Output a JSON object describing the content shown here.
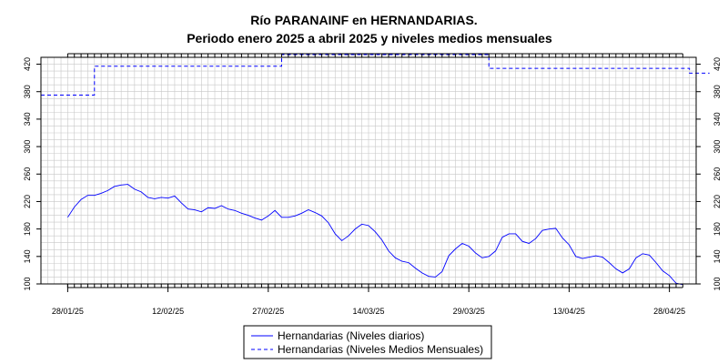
{
  "chart_data": {
    "type": "line",
    "title": "Río PARANAINF en HERNANDARIAS.",
    "subtitle": "Periodo enero 2025 a abril 2025 y niveles medios mensuales",
    "xlabel": "",
    "ylabel": "",
    "x_range": [
      "2025-01-28",
      "2025-04-30"
    ],
    "x_extended_range": [
      "2025-01-24",
      "2025-05-02"
    ],
    "ylim": [
      100,
      430
    ],
    "y_ticks": [
      100,
      140,
      180,
      220,
      260,
      300,
      340,
      380,
      420
    ],
    "x_ticks": [
      {
        "date": "2025-01-28",
        "label": "28/01/25"
      },
      {
        "date": "2025-02-12",
        "label": "12/02/25"
      },
      {
        "date": "2025-02-27",
        "label": "27/02/25"
      },
      {
        "date": "2025-03-14",
        "label": "14/03/25"
      },
      {
        "date": "2025-03-29",
        "label": "29/03/25"
      },
      {
        "date": "2025-04-13",
        "label": "13/04/25"
      },
      {
        "date": "2025-04-28",
        "label": "28/04/25"
      }
    ],
    "grid": true,
    "legend_position": "bottom-center",
    "colors": {
      "daily": "#0000ff",
      "monthly": "#0000ff",
      "grid": "#c8c8c8"
    },
    "series": [
      {
        "name": "Hernandarias (Niveles diarios)",
        "style": "solid",
        "x": [
          "2025-01-28",
          "2025-01-29",
          "2025-01-30",
          "2025-01-31",
          "2025-02-01",
          "2025-02-02",
          "2025-02-03",
          "2025-02-04",
          "2025-02-05",
          "2025-02-06",
          "2025-02-07",
          "2025-02-08",
          "2025-02-09",
          "2025-02-10",
          "2025-02-11",
          "2025-02-12",
          "2025-02-13",
          "2025-02-14",
          "2025-02-15",
          "2025-02-16",
          "2025-02-17",
          "2025-02-18",
          "2025-02-19",
          "2025-02-20",
          "2025-02-21",
          "2025-02-22",
          "2025-02-23",
          "2025-02-24",
          "2025-02-25",
          "2025-02-26",
          "2025-02-27",
          "2025-02-28",
          "2025-03-01",
          "2025-03-02",
          "2025-03-03",
          "2025-03-04",
          "2025-03-05",
          "2025-03-06",
          "2025-03-07",
          "2025-03-08",
          "2025-03-09",
          "2025-03-10",
          "2025-03-11",
          "2025-03-12",
          "2025-03-13",
          "2025-03-14",
          "2025-03-15",
          "2025-03-16",
          "2025-03-17",
          "2025-03-18",
          "2025-03-19",
          "2025-03-20",
          "2025-03-21",
          "2025-03-22",
          "2025-03-23",
          "2025-03-24",
          "2025-03-25",
          "2025-03-26",
          "2025-03-27",
          "2025-03-28",
          "2025-03-29",
          "2025-03-30",
          "2025-03-31",
          "2025-04-01",
          "2025-04-02",
          "2025-04-03",
          "2025-04-04",
          "2025-04-05",
          "2025-04-06",
          "2025-04-07",
          "2025-04-08",
          "2025-04-09",
          "2025-04-10",
          "2025-04-11",
          "2025-04-12",
          "2025-04-13",
          "2025-04-14",
          "2025-04-15",
          "2025-04-16",
          "2025-04-17",
          "2025-04-18",
          "2025-04-19",
          "2025-04-20",
          "2025-04-21",
          "2025-04-22",
          "2025-04-23",
          "2025-04-24",
          "2025-04-25",
          "2025-04-26",
          "2025-04-27",
          "2025-04-28",
          "2025-04-29",
          "2025-04-30"
        ],
        "values": [
          197,
          212,
          223,
          229,
          229,
          232,
          236,
          242,
          244,
          245,
          238,
          234,
          226,
          224,
          226,
          225,
          228,
          218,
          209,
          208,
          205,
          211,
          210,
          214,
          209,
          207,
          203,
          200,
          196,
          193,
          199,
          207,
          197,
          197,
          199,
          203,
          208,
          204,
          199,
          189,
          173,
          163,
          170,
          180,
          187,
          185,
          176,
          164,
          148,
          138,
          133,
          131,
          123,
          116,
          111,
          110,
          118,
          141,
          151,
          159,
          155,
          145,
          138,
          140,
          148,
          168,
          173,
          173,
          162,
          159,
          166,
          178,
          180,
          181,
          167,
          157,
          140,
          137,
          139,
          141,
          139,
          131,
          122,
          116,
          122,
          138,
          144,
          142,
          131,
          119,
          112,
          101,
          99
        ]
      },
      {
        "name": "Hernandarias (Niveles Medios Mensuales)",
        "style": "dashed",
        "steps": [
          {
            "from": "2025-01-24",
            "to": "2025-02-01",
            "value": 375
          },
          {
            "from": "2025-02-01",
            "to": "2025-03-01",
            "value": 417
          },
          {
            "from": "2025-03-01",
            "to": "2025-04-01",
            "value": 434
          },
          {
            "from": "2025-04-01",
            "to": "2025-05-01",
            "value": 414
          },
          {
            "from": "2025-05-01",
            "to": "2025-05-04",
            "value": 407
          }
        ]
      }
    ]
  }
}
